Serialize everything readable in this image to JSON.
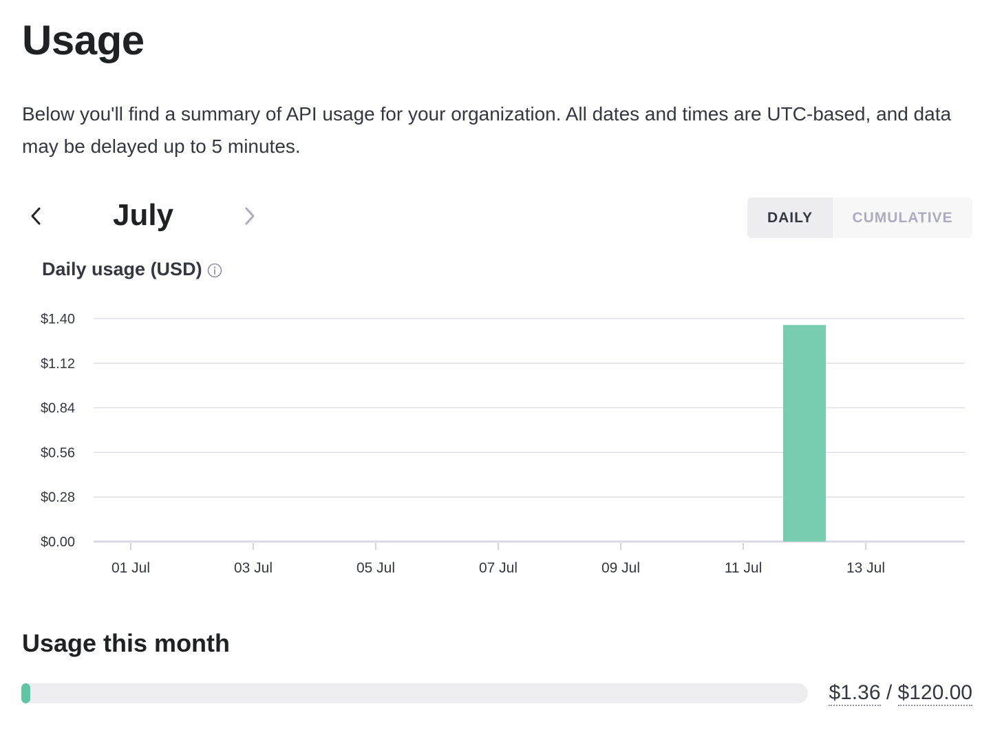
{
  "page": {
    "title": "Usage",
    "description": "Below you'll find a summary of API usage for your organization. All dates and times are UTC-based, and data may be delayed up to 5 minutes."
  },
  "month_nav": {
    "month": "July",
    "prev_icon": "chevron-left-icon",
    "next_icon": "chevron-right-icon"
  },
  "view_toggle": {
    "daily_label": "DAILY",
    "cumulative_label": "CUMULATIVE",
    "selected": "DAILY"
  },
  "chart": {
    "title": "Daily usage (USD)",
    "info_icon": "info-icon"
  },
  "chart_data": {
    "type": "bar",
    "title": "Daily usage (USD)",
    "xlabel": "",
    "ylabel": "",
    "x_start_day": 1,
    "x_end_day": 14,
    "x_ticks": [
      "01 Jul",
      "03 Jul",
      "05 Jul",
      "07 Jul",
      "09 Jul",
      "11 Jul",
      "13 Jul"
    ],
    "y_ticks": [
      "$0.00",
      "$0.28",
      "$0.56",
      "$0.84",
      "$1.12",
      "$1.40"
    ],
    "ylim": [
      0,
      1.4
    ],
    "grid": true,
    "bar_color": "#78cdb0",
    "series": [
      {
        "categories": [
          "12 Jul"
        ],
        "days": [
          12
        ],
        "values": [
          1.36
        ]
      }
    ]
  },
  "usage_month": {
    "title": "Usage this month",
    "used": "$1.36",
    "separator": "/",
    "limit": "$120.00",
    "used_value": 1.36,
    "limit_value": 120.0,
    "bar_color": "#5fc5a4"
  }
}
